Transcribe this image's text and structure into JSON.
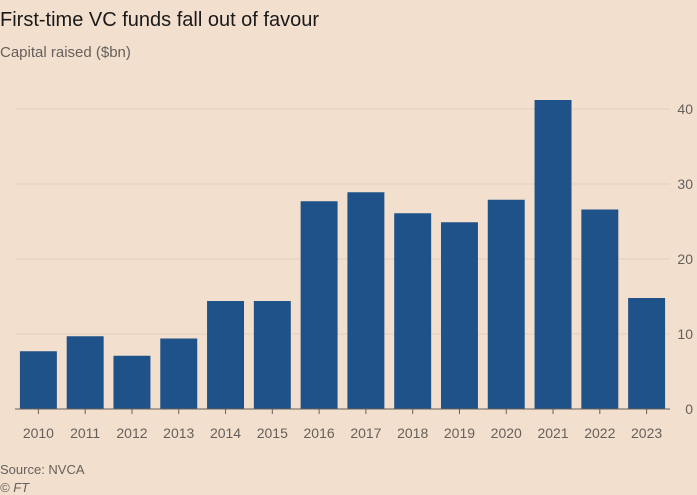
{
  "title": "First-time VC funds fall out of favour",
  "subtitle": "Capital raised ($bn)",
  "source": "Source: NVCA",
  "copyright": "© FT",
  "colors": {
    "bar": "#1f5289",
    "grid": "#e3cfbe",
    "axis": "#66605c",
    "background": "#f2dfce"
  },
  "chart_data": {
    "type": "bar",
    "title": "First-time VC funds fall out of favour",
    "xlabel": "",
    "ylabel": "Capital raised ($bn)",
    "ylim": [
      0,
      40
    ],
    "yticks": [
      0,
      10,
      20,
      30,
      40
    ],
    "grid": true,
    "y_axis_side": "right",
    "categories": [
      "2010",
      "2011",
      "2012",
      "2013",
      "2014",
      "2015",
      "2016",
      "2017",
      "2018",
      "2019",
      "2020",
      "2021",
      "2022",
      "2023"
    ],
    "values": [
      7.7,
      9.7,
      7.1,
      9.4,
      14.4,
      14.4,
      27.7,
      28.9,
      26.1,
      24.9,
      27.9,
      41.2,
      26.6,
      14.8
    ]
  }
}
